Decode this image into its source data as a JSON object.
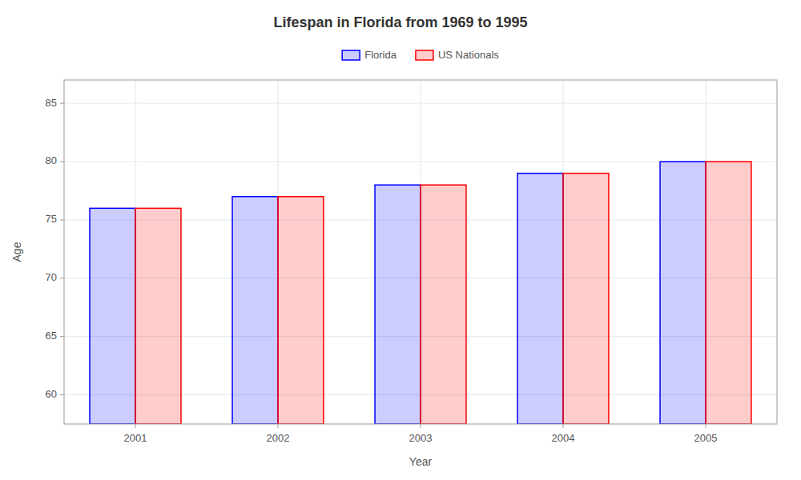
{
  "chart_data": {
    "type": "bar",
    "title": "Lifespan in Florida from 1969 to 1995",
    "xlabel": "Year",
    "ylabel": "Age",
    "categories": [
      "2001",
      "2002",
      "2003",
      "2004",
      "2005"
    ],
    "series": [
      {
        "name": "Florida",
        "color": "#0000ff",
        "values": [
          76,
          77,
          78,
          79,
          80
        ]
      },
      {
        "name": "US Nationals",
        "color": "#ff0000",
        "values": [
          76,
          77,
          78,
          79,
          80
        ]
      }
    ],
    "ylim": [
      57.5,
      87
    ],
    "yticks": [
      60,
      65,
      70,
      75,
      80,
      85
    ],
    "grid": true,
    "legend": "top"
  }
}
